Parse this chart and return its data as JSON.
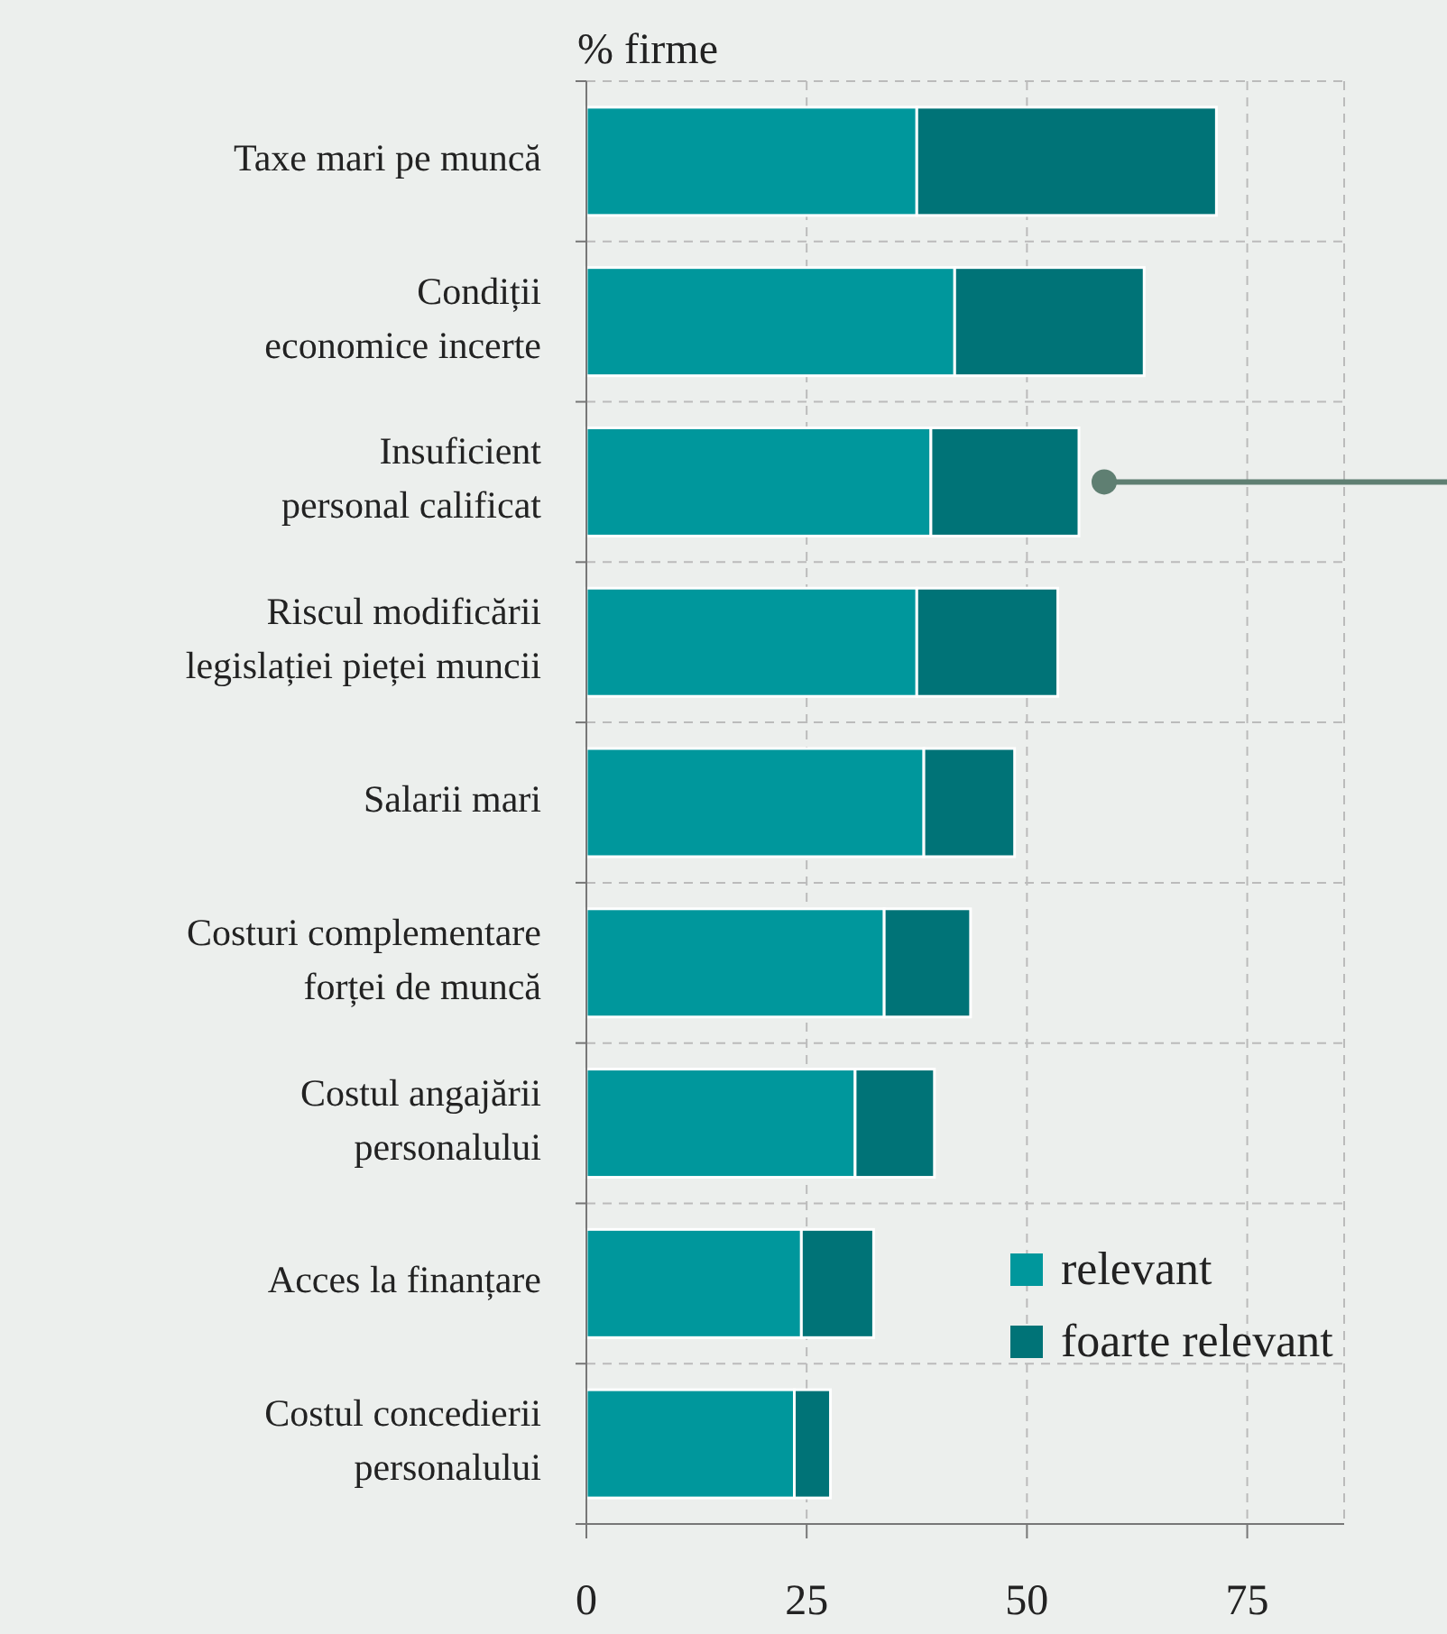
{
  "chart_data": {
    "type": "bar",
    "orientation": "horizontal",
    "stacked": true,
    "ylabel": "% firme",
    "categories": [
      "Taxe mari pe muncă",
      "Condiții economice incerte",
      "Insuficient personal calificat",
      "Riscul modificării legislației pieței muncii",
      "Salarii mari",
      "Costuri complementare forței de muncă",
      "Costul angajării personalului",
      "Acces la finanțare",
      "Costul concedierii personalului"
    ],
    "series": [
      {
        "name": "relevant",
        "color": "#00979c",
        "values": [
          37.5,
          41.8,
          39.1,
          37.5,
          38.3,
          33.8,
          30.5,
          24.4,
          23.6
        ]
      },
      {
        "name": "foarte relevant",
        "color": "#007377",
        "values": [
          34,
          21.5,
          16.8,
          16,
          10.3,
          9.8,
          9,
          8.2,
          4.1
        ]
      }
    ],
    "xlim": [
      0,
      86
    ],
    "xticks": [
      0,
      25,
      50,
      75
    ],
    "grid": true,
    "legend": "bottom right"
  }
}
